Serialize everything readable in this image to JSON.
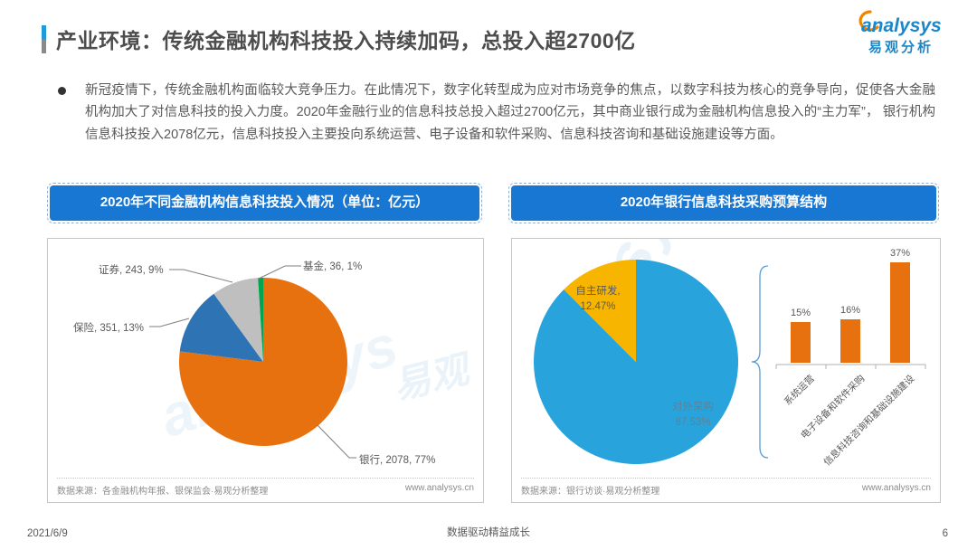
{
  "header": {
    "title": "产业环境：传统金融机构科技投入持续加码，总投入超2700亿",
    "logo_brand": "analysys",
    "logo_cn": "易观分析"
  },
  "intro": {
    "text": "新冠疫情下，传统金融机构面临较大竞争压力。在此情况下，数字化转型成为应对市场竞争的焦点，以数字科技为核心的竞争导向，促使各大金融机构加大了对信息科技的投入力度。2020年金融行业的信息科技总投入超过2700亿元，其中商业银行成为金融机构信息投入的“主力军”， 银行机构信息科技投入2078亿元，信息科技投入主要投向系统运营、电子设备和软件采购、信息科技咨询和基础设施建设等方面。"
  },
  "left_panel": {
    "header": "2020年不同金融机构信息科技投入情况（单位：亿元）",
    "source": "数据来源：各金融机构年报、银保监会·易观分析整理",
    "site": "www.analysys.cn"
  },
  "right_panel": {
    "header": "2020年银行信息科技采购预算结构",
    "source": "数据来源：银行访谈·易观分析整理",
    "site": "www.analysys.cn"
  },
  "watermark": {
    "latin": "analysys",
    "cn": "易观"
  },
  "footer": {
    "date": "2021/6/9",
    "slogan": "数据驱动精益成长",
    "page": "6"
  },
  "chart_data": [
    {
      "type": "pie",
      "title": "2020年不同金融机构信息科技投入情况（单位：亿元）",
      "unit": "亿元",
      "start_angle_deg": 0,
      "direction": "clockwise",
      "series": [
        {
          "name": "银行",
          "value": 2078,
          "pct": 77,
          "color": "#e8710f",
          "label": "银行, 2078, 77%"
        },
        {
          "name": "保险",
          "value": 351,
          "pct": 13,
          "color": "#2e74b5",
          "label": "保险, 351, 13%"
        },
        {
          "name": "证券",
          "value": 243,
          "pct": 9,
          "color": "#bfbfbf",
          "label": "证券, 243, 9%"
        },
        {
          "name": "基金",
          "value": 36,
          "pct": 1,
          "color": "#00a550",
          "label": "基金, 36, 1%"
        }
      ]
    },
    {
      "type": "pie",
      "title": "2020年银行信息科技采购预算结构",
      "start_angle_deg": 0,
      "direction": "clockwise",
      "series": [
        {
          "name": "对外采购",
          "pct": 87.53,
          "color": "#29a3dc",
          "label_line1": "对外采购",
          "label_line2": "87.53%"
        },
        {
          "name": "自主研发",
          "pct": 12.47,
          "color": "#f7b500",
          "label_line1": "自主研发,",
          "label_line2": "12.47%"
        }
      ]
    },
    {
      "type": "bar",
      "title": "2020年银行信息科技采购预算结构（对外采购细分）",
      "categories": [
        "系统运营",
        "电子设备和软件采购",
        "信息科技咨询和基础设施建设"
      ],
      "values": [
        15,
        16,
        37
      ],
      "labels": [
        "15%",
        "16%",
        "37%"
      ],
      "unit": "%",
      "color": "#e8710f",
      "ylim": [
        0,
        40
      ],
      "grid": false
    }
  ]
}
